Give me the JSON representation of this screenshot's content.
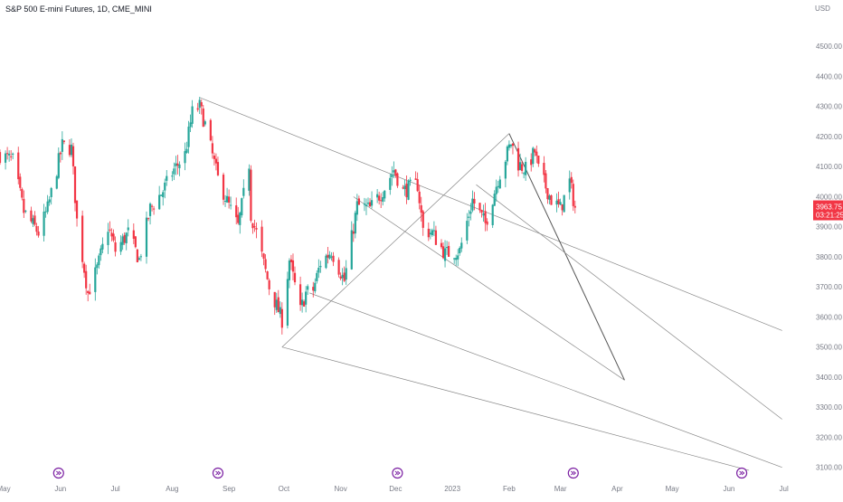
{
  "header": {
    "symbol_title": "S&P 500 E-mini Futures, 1D, CME_MINI",
    "currency": "USD"
  },
  "price_badge": {
    "price": "3963.75",
    "countdown": "03:21:25"
  },
  "colors": {
    "up": "#26a69a",
    "down": "#f23645",
    "grid": "#f0f3fa",
    "axis_text": "#787b86",
    "drawing": "#888888",
    "event_icon": "#7b1fa2"
  },
  "event_icons": [
    {
      "x": "2022-05-31",
      "icon": "dividend-event-icon"
    },
    {
      "x": "2022-08-26",
      "icon": "dividend-event-icon"
    },
    {
      "x": "2022-12-02",
      "icon": "dividend-event-icon"
    },
    {
      "x": "2023-03-08",
      "icon": "dividend-event-icon"
    },
    {
      "x": "2023-06-08",
      "icon": "dividend-event-icon"
    }
  ],
  "chart_data": {
    "type": "candlestick",
    "title": "S&P 500 E-mini Futures, 1D, CME_MINI",
    "currency": "USD",
    "ylim": [
      3060,
      4600
    ],
    "yticks": [
      3100,
      3200,
      3300,
      3400,
      3500,
      3600,
      3700,
      3800,
      3900,
      4000,
      4100,
      4200,
      4300,
      4400,
      4500
    ],
    "ytick_labels": [
      "3100.00",
      "3200.00",
      "3300.00",
      "3400.00",
      "3500.00",
      "3600.00",
      "3700.00",
      "3800.00",
      "3900.00",
      "4000.00",
      "4100.00",
      "4200.00",
      "4300.00",
      "4400.00",
      "4500.00"
    ],
    "xlim": [
      "2022-04-29",
      "2023-07-15"
    ],
    "xticks": [
      {
        "x": "2022-05-01",
        "label": "May"
      },
      {
        "x": "2022-06-01",
        "label": "Jun"
      },
      {
        "x": "2022-07-01",
        "label": "Jul"
      },
      {
        "x": "2022-08-01",
        "label": "Aug"
      },
      {
        "x": "2022-09-01",
        "label": "Sep"
      },
      {
        "x": "2022-10-01",
        "label": "Oct"
      },
      {
        "x": "2022-11-01",
        "label": "Nov"
      },
      {
        "x": "2022-12-01",
        "label": "Dec"
      },
      {
        "x": "2023-01-01",
        "label": "2023"
      },
      {
        "x": "2023-02-01",
        "label": "Feb"
      },
      {
        "x": "2023-03-01",
        "label": "Mar"
      },
      {
        "x": "2023-04-01",
        "label": "Apr"
      },
      {
        "x": "2023-05-01",
        "label": "May"
      },
      {
        "x": "2023-06-01",
        "label": "Jun"
      },
      {
        "x": "2023-07-01",
        "label": "Jul"
      }
    ],
    "grid": false,
    "last_price": 3963.75,
    "close_path": [
      [
        "2022-04-29",
        4140
      ],
      [
        "2022-05-06",
        4120
      ],
      [
        "2022-05-12",
        3950
      ],
      [
        "2022-05-20",
        3880
      ],
      [
        "2022-05-25",
        3960
      ],
      [
        "2022-06-02",
        4170
      ],
      [
        "2022-06-07",
        4160
      ],
      [
        "2022-06-10",
        3920
      ],
      [
        "2022-06-16",
        3680
      ],
      [
        "2022-06-21",
        3760
      ],
      [
        "2022-06-27",
        3900
      ],
      [
        "2022-07-01",
        3820
      ],
      [
        "2022-07-08",
        3880
      ],
      [
        "2022-07-14",
        3790
      ],
      [
        "2022-07-20",
        3960
      ],
      [
        "2022-07-27",
        4020
      ],
      [
        "2022-08-02",
        4090
      ],
      [
        "2022-08-08",
        4140
      ],
      [
        "2022-08-12",
        4280
      ],
      [
        "2022-08-16",
        4300
      ],
      [
        "2022-08-19",
        4240
      ],
      [
        "2022-08-26",
        4060
      ],
      [
        "2022-09-01",
        3970
      ],
      [
        "2022-09-06",
        3900
      ],
      [
        "2022-09-12",
        4110
      ],
      [
        "2022-09-13",
        3940
      ],
      [
        "2022-09-16",
        3880
      ],
      [
        "2022-09-23",
        3700
      ],
      [
        "2022-09-30",
        3590
      ],
      [
        "2022-10-04",
        3790
      ],
      [
        "2022-10-10",
        3620
      ],
      [
        "2022-10-13",
        3680
      ],
      [
        "2022-10-17",
        3690
      ],
      [
        "2022-10-21",
        3780
      ],
      [
        "2022-10-27",
        3820
      ],
      [
        "2022-11-03",
        3720
      ],
      [
        "2022-11-10",
        3970
      ],
      [
        "2022-11-17",
        3960
      ],
      [
        "2022-11-25",
        4030
      ],
      [
        "2022-11-30",
        4090
      ],
      [
        "2022-12-05",
        4020
      ],
      [
        "2022-12-13",
        4040
      ],
      [
        "2022-12-16",
        3890
      ],
      [
        "2022-12-21",
        3880
      ],
      [
        "2022-12-28",
        3810
      ],
      [
        "2023-01-05",
        3820
      ],
      [
        "2023-01-12",
        3990
      ],
      [
        "2023-01-19",
        3910
      ],
      [
        "2023-01-26",
        4060
      ],
      [
        "2023-02-02",
        4180
      ],
      [
        "2023-02-06",
        4110
      ],
      [
        "2023-02-10",
        4090
      ],
      [
        "2023-02-15",
        4150
      ],
      [
        "2023-02-17",
        4090
      ],
      [
        "2023-02-24",
        3990
      ],
      [
        "2023-03-01",
        3960
      ],
      [
        "2023-03-06",
        4050
      ],
      [
        "2023-03-09",
        3963.75
      ]
    ],
    "trend_lines": [
      {
        "name": "pitchfork-upper-line",
        "from": [
          "2022-08-16",
          4330
        ],
        "to": [
          "2023-06-30",
          3555
        ]
      },
      {
        "name": "pitchfork-median-line",
        "from": [
          "2022-09-30",
          3500
        ],
        "to": [
          "2023-02-01",
          4210
        ]
      },
      {
        "name": "pitchfork-center-line",
        "from": [
          "2023-02-01",
          4210
        ],
        "to": [
          "2023-04-05",
          3390
        ]
      },
      {
        "name": "pitchfork-lower-line-1",
        "from": [
          "2022-09-30",
          3500
        ],
        "to": [
          "2023-06-12",
          3090
        ]
      },
      {
        "name": "pitchfork-lower-line-2",
        "from": [
          "2022-10-15",
          3680
        ],
        "to": [
          "2023-06-30",
          3100
        ]
      },
      {
        "name": "pitchfork-mid-line",
        "from": [
          "2023-01-14",
          4040
        ],
        "to": [
          "2023-06-30",
          3260
        ]
      },
      {
        "name": "pitchfork-inner-line",
        "from": [
          "2022-11-08",
          4000
        ],
        "to": [
          "2023-04-05",
          3390
        ]
      }
    ]
  }
}
